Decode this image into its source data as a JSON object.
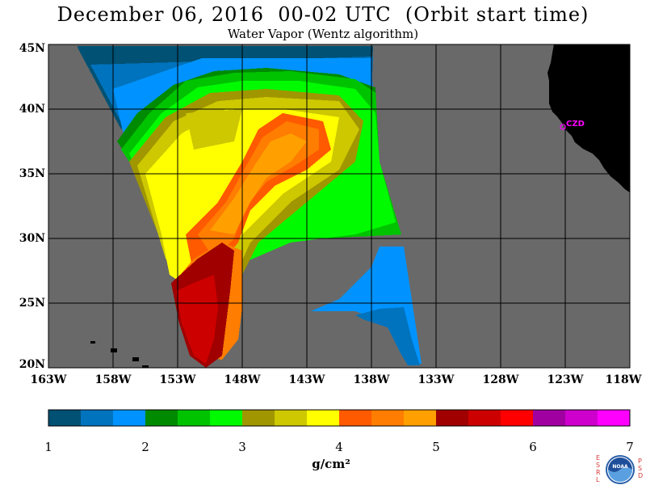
{
  "title": "December 06, 2016  00-02 UTC  (Orbit start time)",
  "subtitle": "Water Vapor (Wentz algorithm)",
  "station_label": "CZD",
  "lat_labels": [
    "45N",
    "40N",
    "35N",
    "30N",
    "25N",
    "20N"
  ],
  "lon_labels": [
    "163W",
    "158W",
    "153W",
    "148W",
    "143W",
    "138W",
    "133W",
    "128W",
    "123W",
    "118W"
  ],
  "colorbar": {
    "tick_labels": [
      "1",
      "2",
      "3",
      "4",
      "5",
      "6",
      "7"
    ],
    "units": "g/cm²",
    "colors": [
      "#005173",
      "#0073be",
      "#0093ff",
      "#008a00",
      "#00c300",
      "#00fb00",
      "#a09600",
      "#cdc800",
      "#ffff00",
      "#ff5a00",
      "#ff7d00",
      "#ffa000",
      "#a00000",
      "#cd0000",
      "#ff0000",
      "#a000a0",
      "#cd00cd",
      "#ff00ff"
    ]
  },
  "colors": {
    "ocean_no_data": "#696969",
    "land": "#000000",
    "station": "#ff00ff",
    "grid": "#000000"
  },
  "logo": {
    "text": "NOAA",
    "left_letters": "ESRL",
    "right_letters": "PSD"
  }
}
